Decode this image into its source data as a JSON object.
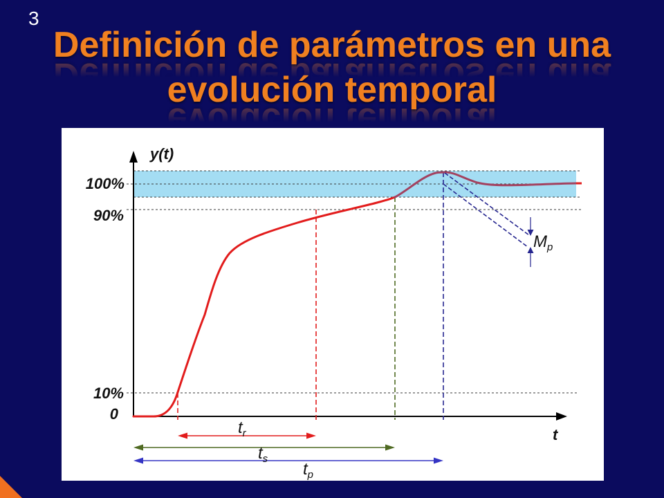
{
  "slide": {
    "number": "3"
  },
  "title": {
    "line1": "Definición de parámetros en una",
    "line2": "evolución temporal"
  },
  "diagram": {
    "y_axis_label": "y(t)",
    "x_axis_label": "t",
    "level_labels": [
      "100%",
      "90%",
      "10%",
      "0"
    ],
    "rise_time": {
      "symbol": "t",
      "subscript": "r"
    },
    "settling_time": {
      "symbol": "t",
      "subscript": "s"
    },
    "peak_time": {
      "symbol": "t",
      "subscript": "p"
    },
    "overshoot": {
      "symbol": "M",
      "subscript": "p"
    }
  },
  "colors": {
    "background": "#0b0b5e",
    "panel": "#ffffff",
    "title": "#f08020",
    "curve": "#e21c1c",
    "curve_in_band": "#a3415f",
    "tolerance_band": "#a4ddf3",
    "rise_time_marker": "#e21c1c",
    "settling_time_marker": "#4f6a22",
    "peak_marker": "#25258f",
    "peak_time_arrow": "#3434c4",
    "corner_accent": "#f07020"
  }
}
